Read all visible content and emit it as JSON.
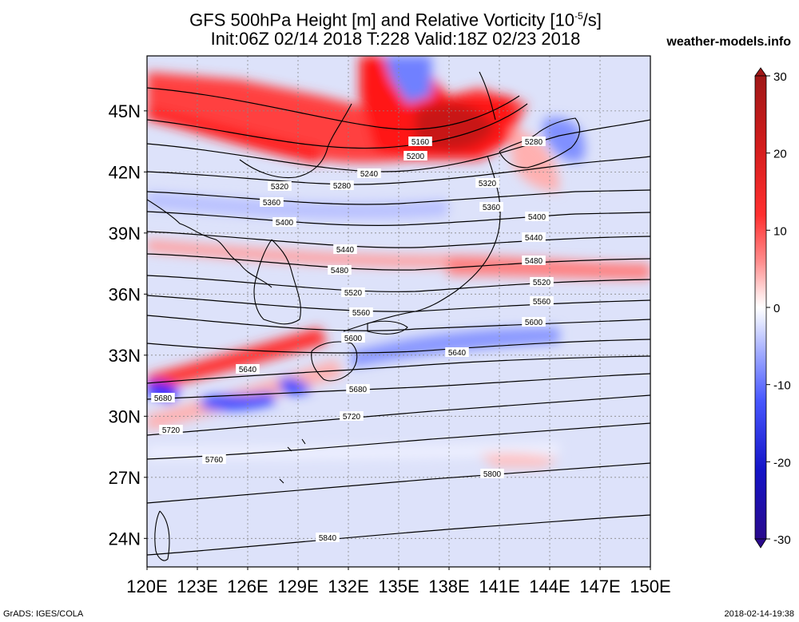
{
  "header": {
    "title_line1": "GFS 500hPa Height [m] and Relative Vorticity [10",
    "title_sup": "-5",
    "title_line1_end": "/s]",
    "title_line2": "Init:06Z 02/14 2018 T:228 Valid:18Z 02/23 2018",
    "site": "weather-models.info"
  },
  "footer": {
    "left": "GrADS: IGES/COLA",
    "right": "2018-02-14-19:38"
  },
  "map": {
    "lat_labels": [
      "45N",
      "42N",
      "39N",
      "36N",
      "33N",
      "30N",
      "27N",
      "24N"
    ],
    "lat_values": [
      45,
      42,
      39,
      36,
      33,
      30,
      27,
      24
    ],
    "lon_labels": [
      "120E",
      "123E",
      "126E",
      "129E",
      "132E",
      "135E",
      "138E",
      "141E",
      "144E",
      "147E",
      "150E"
    ],
    "lon_values": [
      120,
      123,
      126,
      129,
      132,
      135,
      138,
      141,
      144,
      147,
      150
    ],
    "contour_labels": [
      "5160",
      "5200",
      "5240",
      "5280",
      "5280",
      "5320",
      "5320",
      "5360",
      "5360",
      "5400",
      "5400",
      "5440",
      "5440",
      "5480",
      "5480",
      "5520",
      "5520",
      "5560",
      "5560",
      "5600",
      "5600",
      "5640",
      "5640",
      "5680",
      "5680",
      "5720",
      "5720",
      "5760",
      "5800",
      "5840"
    ]
  },
  "colorbar": {
    "ticks": [
      "30",
      "20",
      "10",
      "0",
      "-10",
      "-20",
      "-30"
    ],
    "tick_values": [
      30,
      20,
      10,
      0,
      -10,
      -20,
      -30
    ],
    "colors": [
      "#a01818",
      "#d21c1c",
      "#ff1e1e",
      "#ff5050",
      "#ff8c8c",
      "#ffc4c4",
      "#ffe8e8",
      "#ffffff",
      "#e4e8ff",
      "#c0c8ff",
      "#8c96ff",
      "#5060ff",
      "#1e2cff",
      "#1414c8",
      "#2a0a8c"
    ]
  }
}
